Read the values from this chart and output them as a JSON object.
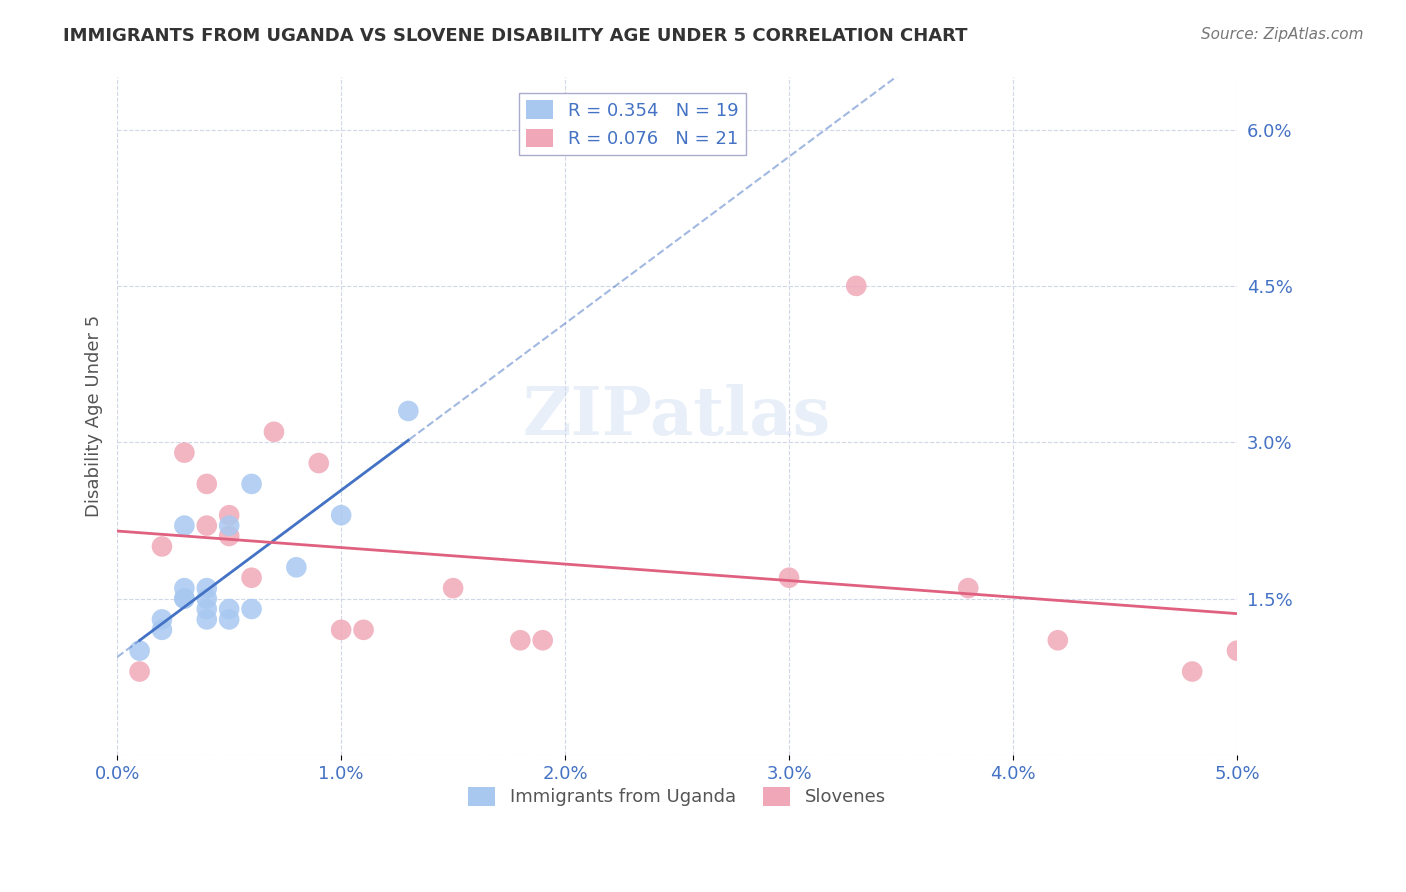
{
  "title": "IMMIGRANTS FROM UGANDA VS SLOVENE DISABILITY AGE UNDER 5 CORRELATION CHART",
  "source": "Source: ZipAtlas.com",
  "xlabel": "",
  "ylabel": "Disability Age Under 5",
  "legend_label1": "Immigrants from Uganda",
  "legend_label2": "Slovenes",
  "R1": 0.354,
  "N1": 19,
  "R2": 0.076,
  "N2": 21,
  "xlim": [
    0.0,
    0.05
  ],
  "ylim": [
    0.0,
    0.065
  ],
  "xticks": [
    0.0,
    0.01,
    0.02,
    0.03,
    0.04,
    0.05
  ],
  "yticks": [
    0.0,
    0.015,
    0.03,
    0.045,
    0.06
  ],
  "ytick_labels": [
    "",
    "1.5%",
    "3.0%",
    "4.5%",
    "6.0%"
  ],
  "xtick_labels": [
    "0.0%",
    "1.0%",
    "2.0%",
    "3.0%",
    "4.0%",
    "5.0%"
  ],
  "color_uganda": "#a8c8f0",
  "color_slovene": "#f0a8b8",
  "color_uganda_line": "#4472c4",
  "color_slovene_line": "#e06080",
  "color_axis_labels": "#4472c4",
  "background_color": "#ffffff",
  "grid_color": "#d0d8e8",
  "watermark": "ZIPatlas",
  "uganda_x": [
    0.001,
    0.002,
    0.002,
    0.003,
    0.003,
    0.003,
    0.003,
    0.004,
    0.004,
    0.004,
    0.004,
    0.005,
    0.005,
    0.005,
    0.006,
    0.006,
    0.008,
    0.01,
    0.013
  ],
  "uganda_y": [
    0.01,
    0.012,
    0.013,
    0.015,
    0.015,
    0.016,
    0.022,
    0.013,
    0.014,
    0.015,
    0.016,
    0.013,
    0.014,
    0.022,
    0.014,
    0.026,
    0.018,
    0.023,
    0.033
  ],
  "slovene_x": [
    0.001,
    0.002,
    0.003,
    0.004,
    0.004,
    0.005,
    0.005,
    0.006,
    0.007,
    0.009,
    0.01,
    0.011,
    0.015,
    0.018,
    0.019,
    0.03,
    0.033,
    0.038,
    0.042,
    0.048,
    0.05
  ],
  "slovene_y": [
    0.008,
    0.02,
    0.029,
    0.022,
    0.026,
    0.021,
    0.023,
    0.017,
    0.031,
    0.028,
    0.012,
    0.012,
    0.016,
    0.011,
    0.011,
    0.017,
    0.045,
    0.016,
    0.011,
    0.008,
    0.01
  ]
}
